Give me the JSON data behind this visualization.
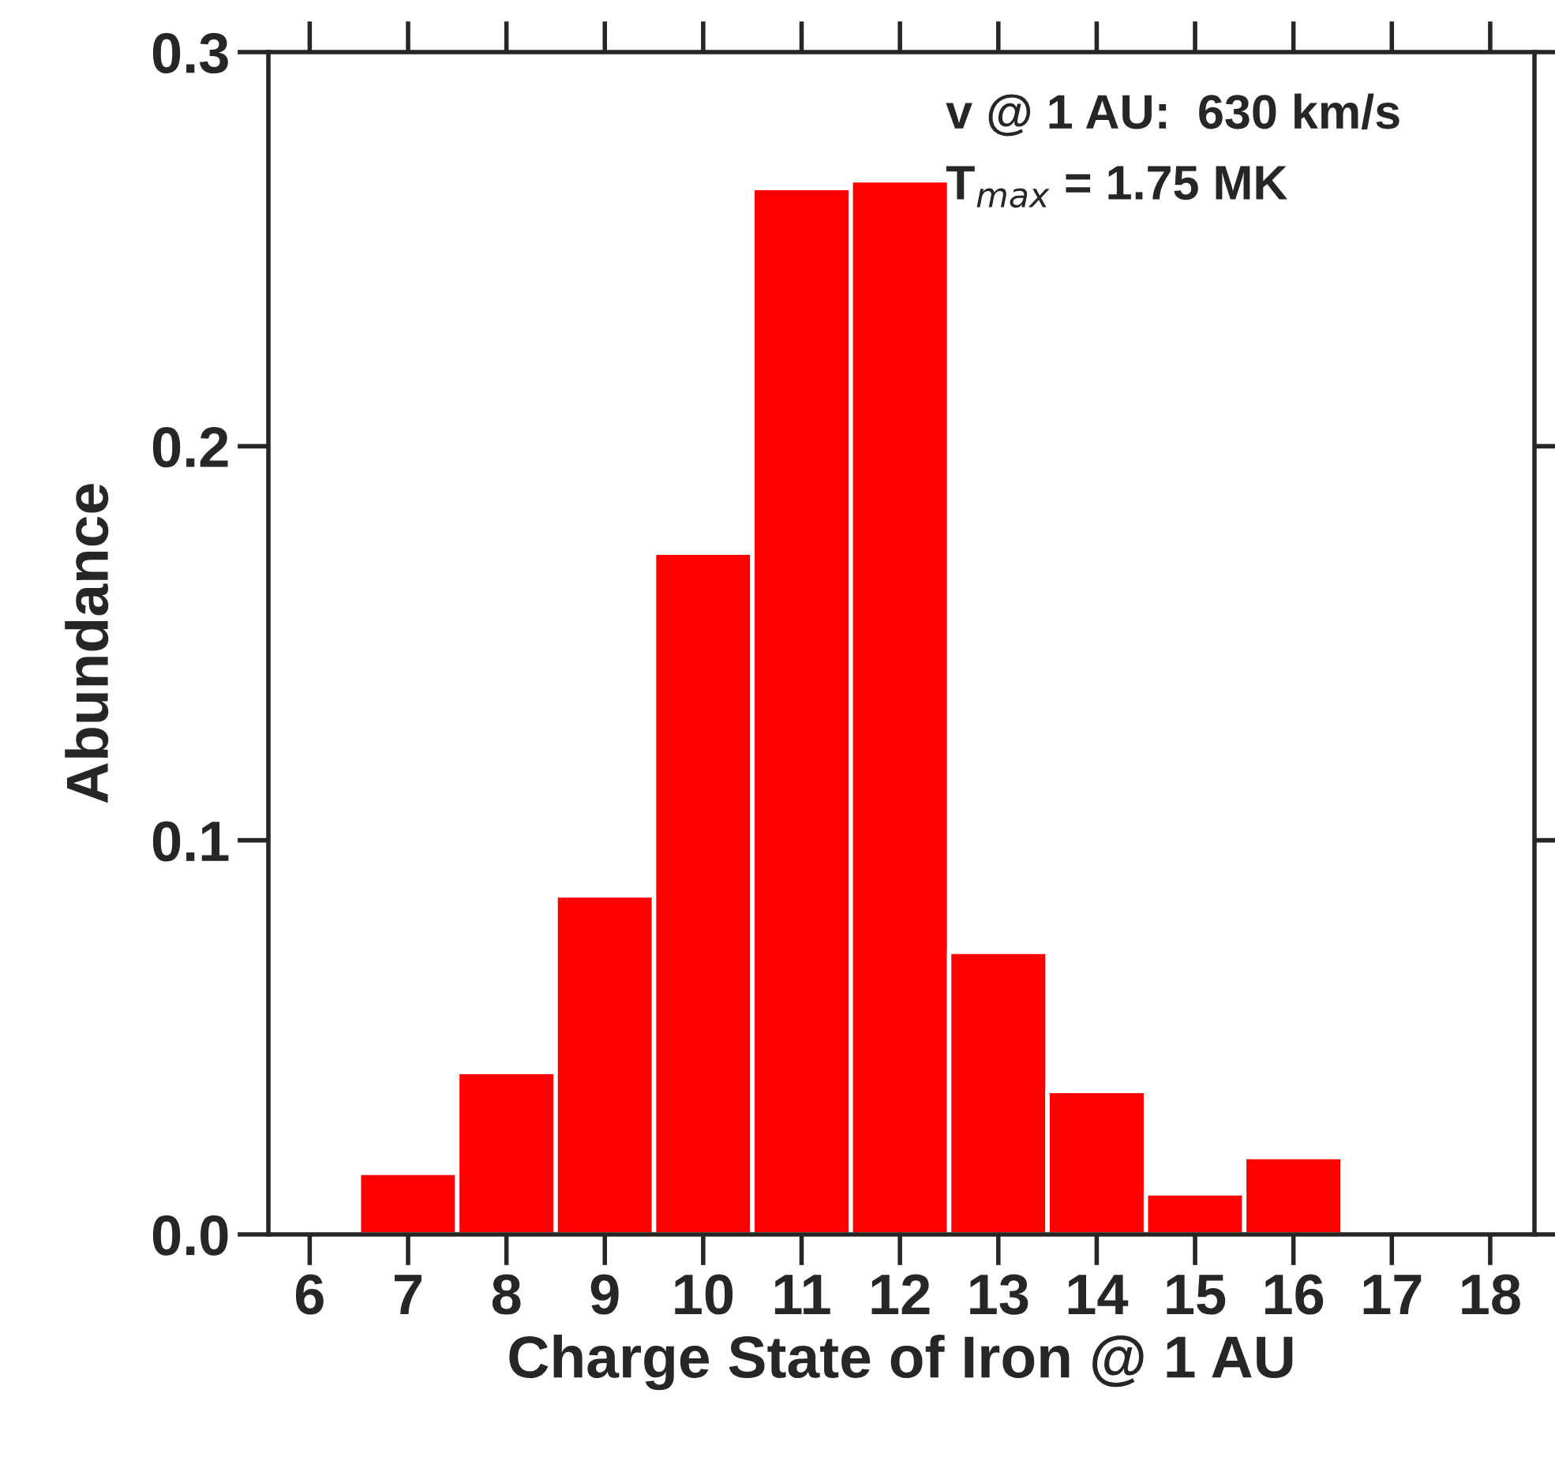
{
  "chart_data": {
    "type": "histogram",
    "xlabel": "Charge State of Iron @ 1 AU",
    "ylabel": "Abundance",
    "bins": [
      6.5,
      7.5,
      8.5,
      9.5,
      10.5,
      11.5,
      12.5,
      13.5,
      14.5,
      15.5,
      16.5
    ],
    "values": [
      0.0156,
      0.0412,
      0.086,
      0.173,
      0.2655,
      0.2675,
      0.0717,
      0.0364,
      0.0104,
      0.0196
    ],
    "color": "#ff0000",
    "xlim": [
      5.58,
      18.45
    ],
    "ylim": [
      0,
      0.3
    ],
    "xticks": [
      6,
      7,
      8,
      9,
      10,
      11,
      12,
      13,
      14,
      15,
      16,
      17,
      18
    ],
    "yticks": [
      {
        "value": 0.0,
        "label": "0.0"
      },
      {
        "value": 0.1,
        "label": "0.1"
      },
      {
        "value": 0.2,
        "label": "0.2"
      },
      {
        "value": 0.3,
        "label": "0.3"
      }
    ],
    "annotations": [
      "v @ 1 AU:  630 km/s",
      "T$_{max}$ = 1.75 MK"
    ],
    "grid": false
  }
}
